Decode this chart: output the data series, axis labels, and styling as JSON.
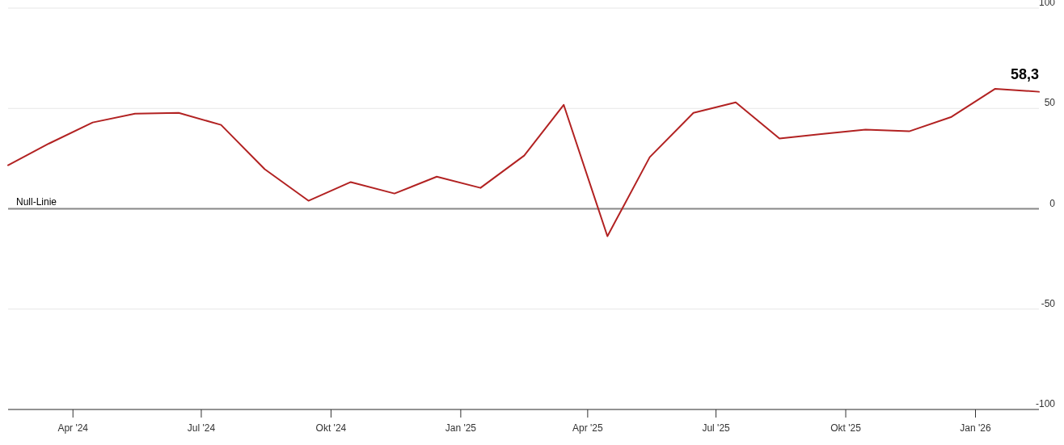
{
  "chart_data": {
    "type": "line",
    "x": [
      "2024-02-15",
      "2024-03-15",
      "2024-04-15",
      "2024-05-15",
      "2024-06-15",
      "2024-07-15",
      "2024-08-15",
      "2024-09-15",
      "2024-10-15",
      "2024-11-15",
      "2024-12-15",
      "2025-01-15",
      "2025-02-15",
      "2025-03-15",
      "2025-04-15",
      "2025-05-15",
      "2025-06-15",
      "2025-07-15",
      "2025-08-15",
      "2025-09-15",
      "2025-10-15",
      "2025-11-15",
      "2025-12-15",
      "2026-01-15",
      "2026-02-15"
    ],
    "series": [
      {
        "color": "#b22222",
        "values": [
          21.7,
          32.5,
          43,
          47.4,
          47.8,
          41.8,
          19.7,
          4,
          13.3,
          7.6,
          16,
          10.4,
          26.5,
          51.8,
          -13.7,
          25.7,
          47.8,
          53,
          35,
          37.3,
          39.4,
          38.6,
          45.8,
          59.8,
          58.3
        ],
        "value_labels": [
          null,
          null,
          null,
          null,
          null,
          null,
          null,
          null,
          null,
          null,
          null,
          null,
          null,
          null,
          null,
          null,
          null,
          null,
          null,
          null,
          null,
          null,
          null,
          null,
          "58,3"
        ]
      }
    ],
    "xlim": [
      "2024-02-15",
      "2026-02-15"
    ],
    "xticks": [
      {
        "value": "2024-04-01",
        "label": "Apr '24"
      },
      {
        "value": "2024-07-01",
        "label": "Jul '24"
      },
      {
        "value": "2024-10-01",
        "label": "Okt '24"
      },
      {
        "value": "2025-01-01",
        "label": "Jan '25"
      },
      {
        "value": "2025-04-01",
        "label": "Apr '25"
      },
      {
        "value": "2025-07-01",
        "label": "Jul '25"
      },
      {
        "value": "2025-10-01",
        "label": "Okt '25"
      },
      {
        "value": "2026-01-01",
        "label": "Jan '26"
      }
    ],
    "ylim": [
      -100,
      100
    ],
    "yticks": [
      -100,
      -50,
      0,
      50,
      100
    ],
    "grid": "y",
    "marker": "none",
    "line_style": "solid",
    "ref_lines": [
      {
        "axis": "y",
        "value": 0,
        "label": "Null-Linie",
        "color": "#888888"
      }
    ]
  }
}
